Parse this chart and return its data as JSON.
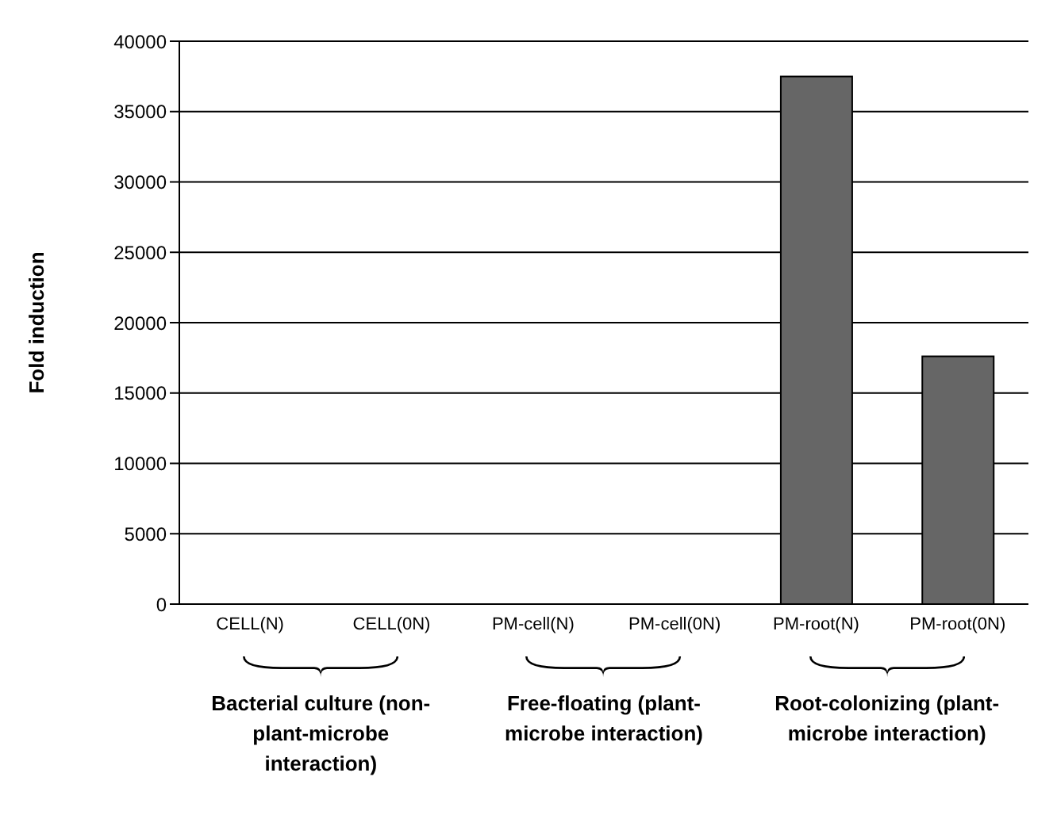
{
  "chart_data": {
    "type": "bar",
    "ylabel": "Fold induction",
    "categories": [
      "CELL(N)",
      "CELL(0N)",
      "PM-cell(N)",
      "PM-cell(0N)",
      "PM-root(N)",
      "PM-root(0N)"
    ],
    "values": [
      0,
      0,
      0,
      0,
      37500,
      17600
    ],
    "color": "#666666",
    "ylim": [
      0,
      40000
    ],
    "yticks": [
      0,
      5000,
      10000,
      15000,
      20000,
      25000,
      30000,
      35000,
      40000
    ],
    "grid": "y",
    "annotations": [
      "Bacterial culture (non-plant-microbe interaction)",
      "Free-floating (plant-microbe interaction)",
      "Root-colonizing (plant-microbe interaction)"
    ]
  }
}
